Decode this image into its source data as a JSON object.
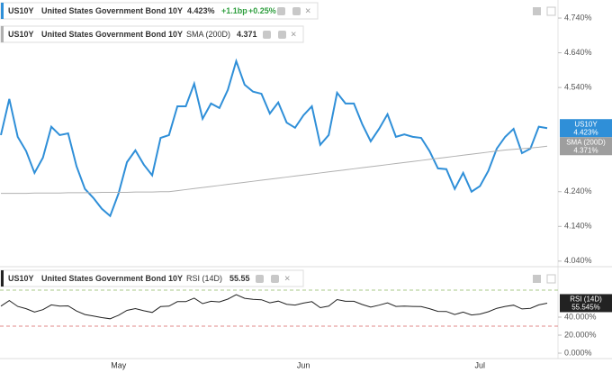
{
  "chart_data": [
    {
      "type": "line",
      "categories": [
        null,
        null,
        null,
        null,
        null,
        null,
        null,
        null,
        null,
        null,
        null,
        null,
        null,
        null,
        "May",
        null,
        null,
        null,
        null,
        null,
        null,
        null,
        null,
        null,
        null,
        null,
        null,
        null,
        null,
        null,
        null,
        null,
        null,
        null,
        null,
        null,
        "Jun",
        null,
        null,
        null,
        null,
        null,
        null,
        null,
        null,
        null,
        null,
        null,
        null,
        null,
        null,
        null,
        null,
        null,
        null,
        null,
        null,
        "Jul",
        null,
        null,
        null,
        null,
        null,
        null,
        null,
        null
      ],
      "series": [
        {
          "name": "US10Y",
          "color": "#2f8fd8",
          "last_value_label": "4.423%",
          "values": [
            4.403,
            4.507,
            4.398,
            4.357,
            4.294,
            4.338,
            4.427,
            4.403,
            4.408,
            4.313,
            4.248,
            4.222,
            4.191,
            4.17,
            4.235,
            4.325,
            4.359,
            4.318,
            4.287,
            4.395,
            4.403,
            4.486,
            4.486,
            4.551,
            4.45,
            4.494,
            4.481,
            4.533,
            4.616,
            4.548,
            4.528,
            4.522,
            4.465,
            4.497,
            4.439,
            4.424,
            4.46,
            4.486,
            4.375,
            4.403,
            4.525,
            4.494,
            4.494,
            4.434,
            4.385,
            4.421,
            4.463,
            4.398,
            4.405,
            4.398,
            4.395,
            4.357,
            4.307,
            4.305,
            4.248,
            4.294,
            4.24,
            4.256,
            4.3,
            4.364,
            4.398,
            4.421,
            4.351,
            4.364,
            4.427,
            4.423
          ]
        },
        {
          "name": "SMA (200D)",
          "color": "#b0b0b0",
          "last_value_label": "4.371%",
          "values": [
            4.235,
            4.235,
            4.235,
            4.235,
            4.236,
            4.236,
            4.236,
            4.236,
            4.237,
            4.237,
            4.237,
            4.237,
            4.238,
            4.238,
            4.238,
            4.238,
            4.239,
            4.239,
            4.239,
            4.24,
            4.24,
            4.243,
            4.246,
            4.249,
            4.252,
            4.255,
            4.258,
            4.261,
            4.264,
            4.267,
            4.27,
            4.273,
            4.276,
            4.279,
            4.282,
            4.285,
            4.288,
            4.291,
            4.294,
            4.297,
            4.3,
            4.303,
            4.306,
            4.309,
            4.312,
            4.315,
            4.318,
            4.321,
            4.324,
            4.327,
            4.33,
            4.333,
            4.336,
            4.339,
            4.342,
            4.345,
            4.348,
            4.351,
            4.354,
            4.357,
            4.36,
            4.362,
            4.364,
            4.366,
            4.368,
            4.371
          ]
        }
      ],
      "ylim": [
        4.024,
        4.792
      ],
      "yticks": [
        {
          "value": 4.04,
          "label": "4.040%"
        },
        {
          "value": 4.14,
          "label": "4.140%"
        },
        {
          "value": 4.24,
          "label": "4.240%"
        },
        {
          "value": 4.54,
          "label": "4.540%"
        },
        {
          "value": 4.64,
          "label": "4.640%"
        },
        {
          "value": 4.74,
          "label": "4.740%"
        }
      ],
      "legend": {
        "symbol": "US10Y",
        "description": "United States Government Bond 10Y",
        "value": "4.423%",
        "change": "+1.1bp",
        "change_percent": "+0.25%"
      },
      "study_legend": {
        "symbol": "US10Y",
        "description": "United States Government Bond 10Y",
        "study": "SMA (200D)",
        "value": "4.371"
      }
    },
    {
      "type": "line",
      "series": [
        {
          "name": "RSI (14D)",
          "color": "#222222",
          "last_value_label": "55.545%",
          "values": [
            52.2,
            58.4,
            51.9,
            49.4,
            45.6,
            48.3,
            53.6,
            52.2,
            52.5,
            46.8,
            42.9,
            41.3,
            39.5,
            38.2,
            42.1,
            47.5,
            49.5,
            47.1,
            45.2,
            51.7,
            52.2,
            57.2,
            57.2,
            61.1,
            55.0,
            57.6,
            56.9,
            60.0,
            65.0,
            60.9,
            59.7,
            59.3,
            55.9,
            57.8,
            54.3,
            53.4,
            55.6,
            57.2,
            50.5,
            52.2,
            59.5,
            57.6,
            57.6,
            54.0,
            51.1,
            53.3,
            55.8,
            51.9,
            52.3,
            51.9,
            51.7,
            49.4,
            46.4,
            46.3,
            42.9,
            45.6,
            42.4,
            43.4,
            46.0,
            49.8,
            51.9,
            53.3,
            49.1,
            49.8,
            53.6,
            55.545
          ]
        }
      ],
      "ylim": [
        -6,
        94
      ],
      "yticks": [
        {
          "value": 0,
          "label": "0.000%"
        },
        {
          "value": 20,
          "label": "20.000%"
        },
        {
          "value": 40,
          "label": "40.000%"
        }
      ],
      "levels": [
        30,
        70
      ],
      "study_legend": {
        "symbol": "US10Y",
        "description": "United States Government Bond 10Y",
        "study": "RSI (14D)",
        "value": "55.55"
      }
    }
  ]
}
